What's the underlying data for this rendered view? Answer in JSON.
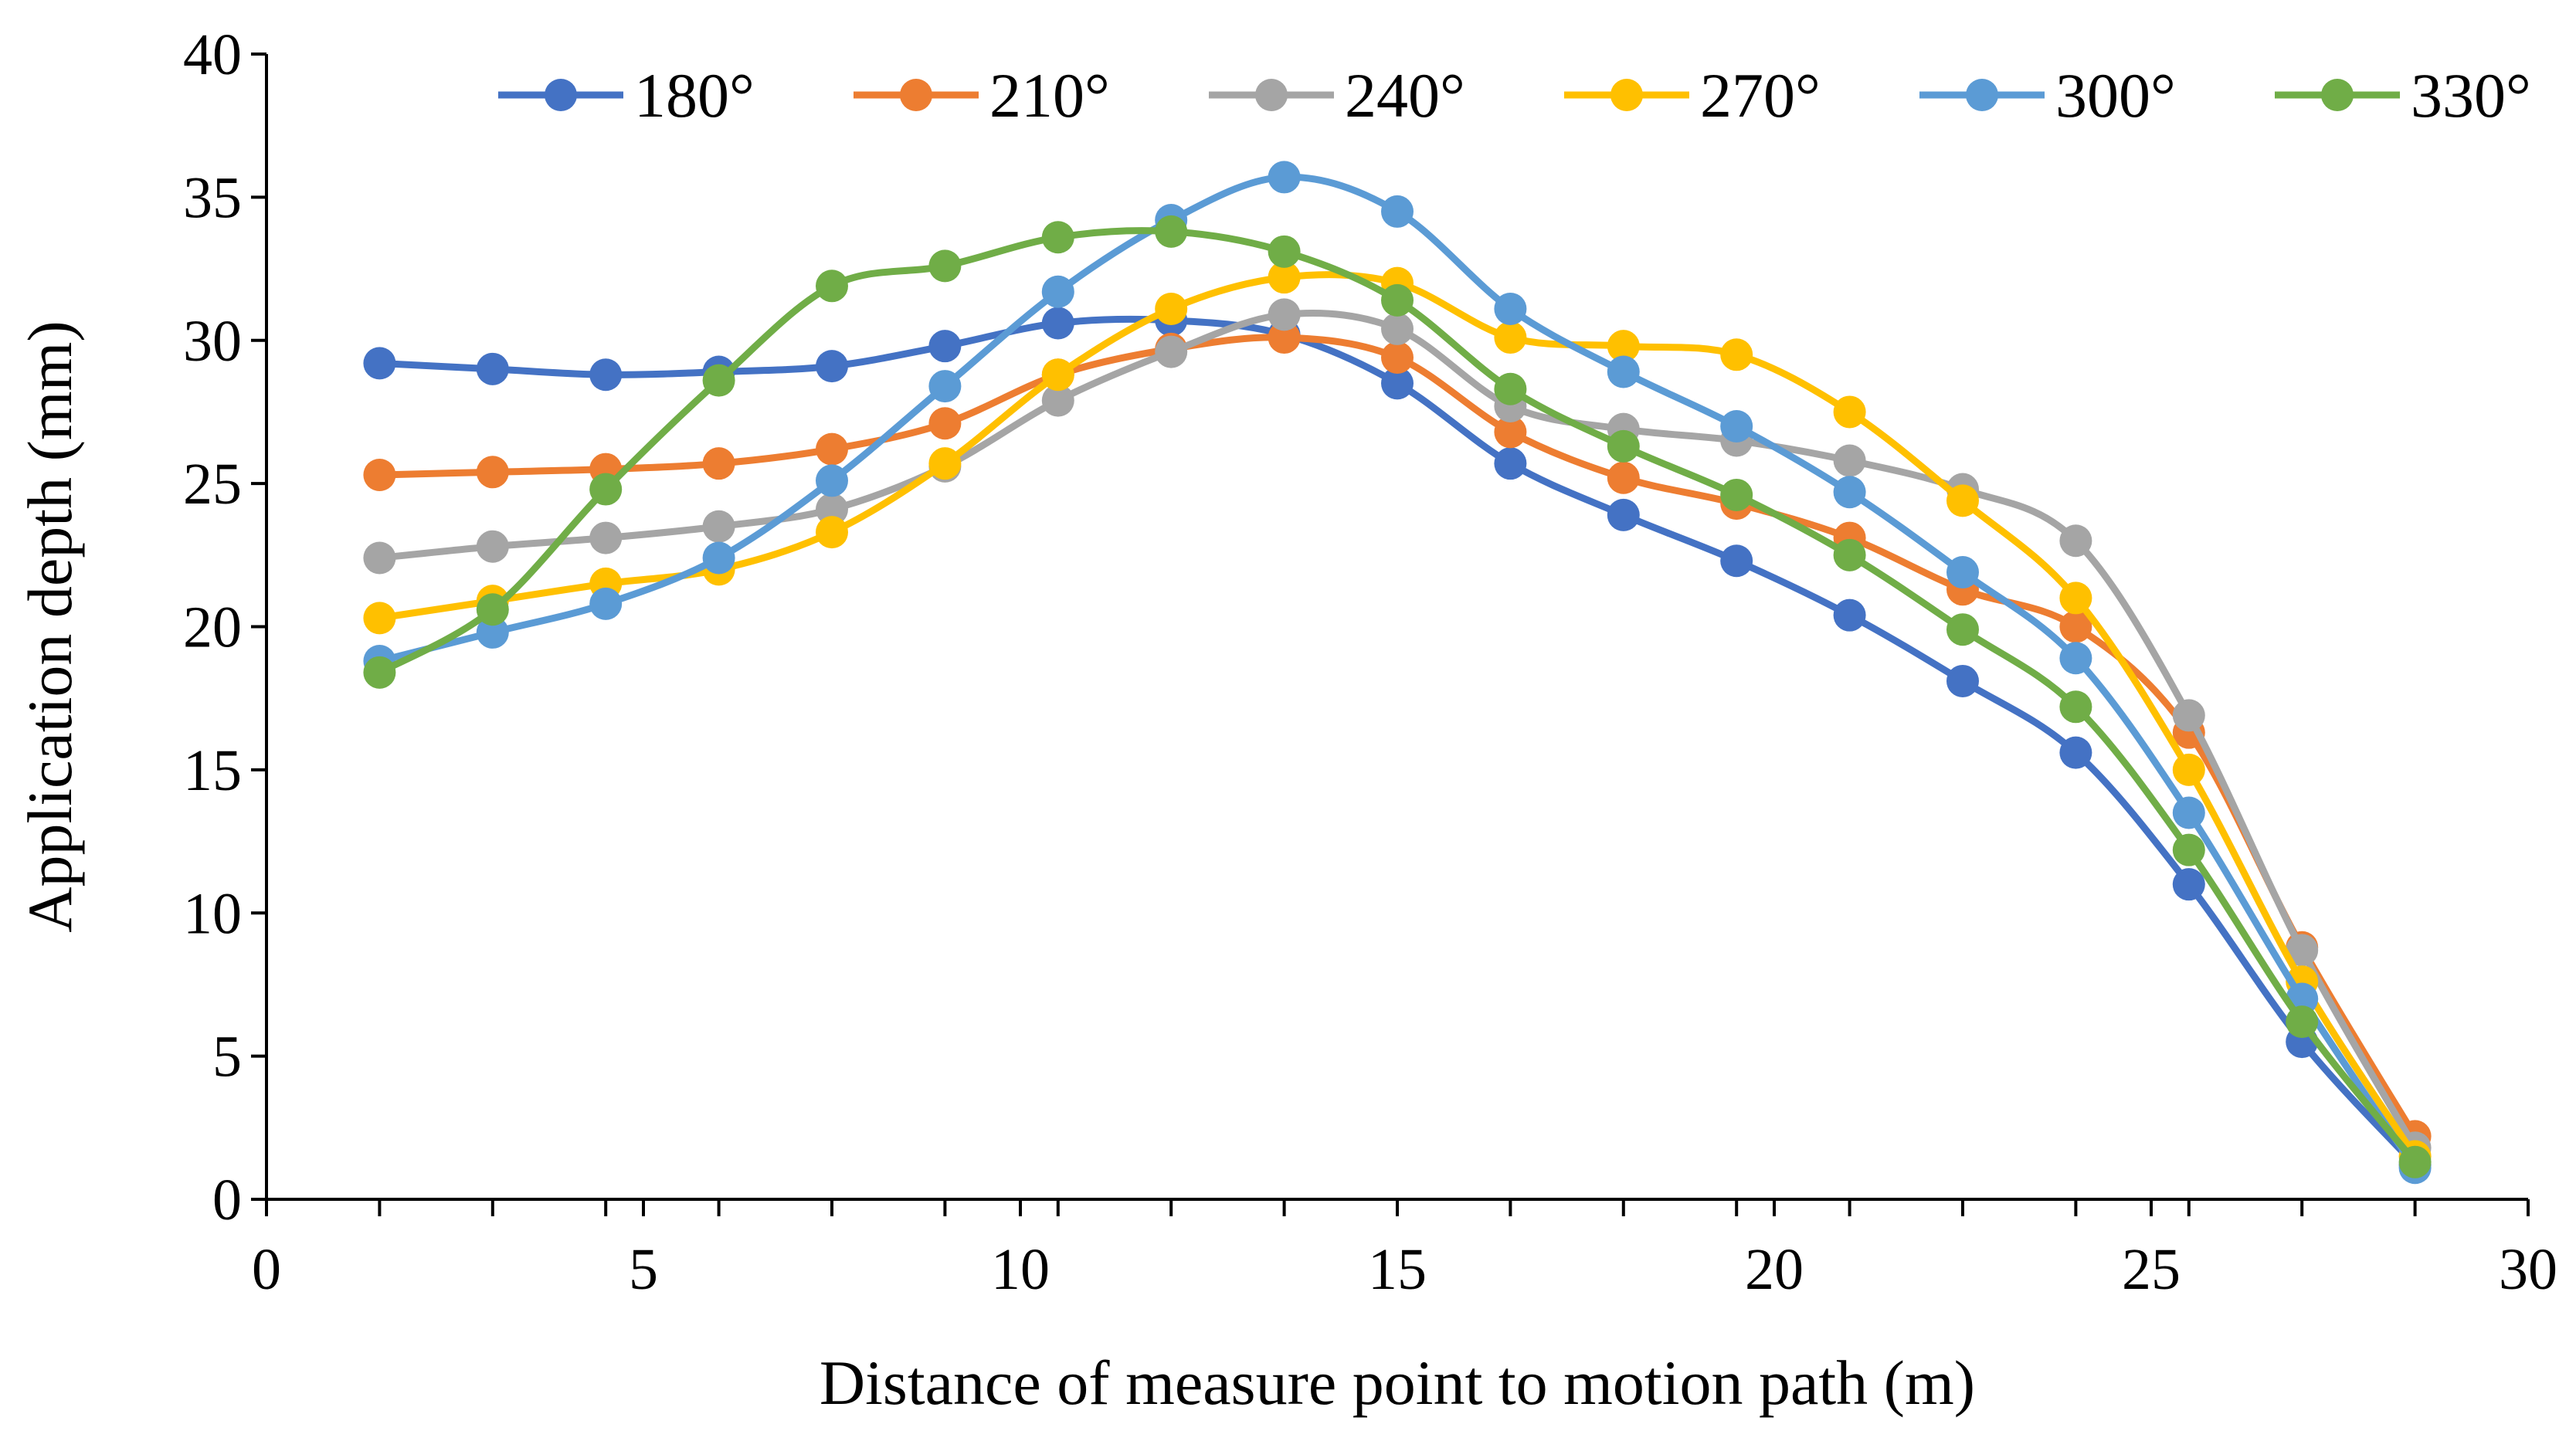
{
  "chart_data": {
    "type": "line",
    "title": "",
    "xlabel": "Distance of measure point to motion path (m)",
    "ylabel": "Application depth (mm)",
    "xlim": [
      0,
      30
    ],
    "ylim": [
      0,
      40
    ],
    "x_ticks": [
      "0",
      "5",
      "10",
      "15",
      "20",
      "25",
      "30"
    ],
    "y_ticks": [
      "0",
      "5",
      "10",
      "15",
      "20",
      "25",
      "30",
      "35",
      "40"
    ],
    "x_major_step": 5,
    "x_minor_step": 1.5,
    "grid": false,
    "legend_position": "top",
    "x": [
      1.5,
      3,
      4.5,
      6,
      7.5,
      9,
      10.5,
      12,
      13.5,
      15,
      16.5,
      18,
      19.5,
      21,
      22.5,
      24,
      25.5,
      27,
      28.5
    ],
    "series": [
      {
        "name": "180°",
        "color": "#4472C4",
        "values": [
          29.2,
          29.0,
          28.8,
          28.9,
          29.1,
          29.8,
          30.6,
          30.7,
          30.2,
          28.5,
          25.7,
          23.9,
          22.3,
          20.4,
          18.1,
          15.6,
          11.0,
          5.5,
          1.2
        ]
      },
      {
        "name": "210°",
        "color": "#ED7D31",
        "values": [
          25.3,
          25.4,
          25.5,
          25.7,
          26.2,
          27.1,
          28.8,
          29.7,
          30.1,
          29.4,
          26.8,
          25.2,
          24.3,
          23.1,
          21.3,
          20.0,
          16.3,
          8.8,
          2.2
        ]
      },
      {
        "name": "240°",
        "color": "#A5A5A5",
        "values": [
          22.4,
          22.8,
          23.1,
          23.5,
          24.1,
          25.6,
          27.9,
          29.6,
          30.9,
          30.4,
          27.7,
          26.9,
          26.5,
          25.8,
          24.8,
          23.0,
          16.9,
          8.7,
          1.8
        ]
      },
      {
        "name": "270°",
        "color": "#FFC000",
        "values": [
          20.3,
          20.9,
          21.5,
          22.0,
          23.3,
          25.7,
          28.8,
          31.1,
          32.2,
          32.0,
          30.1,
          29.8,
          29.5,
          27.5,
          24.4,
          21.0,
          15.0,
          7.6,
          1.5
        ]
      },
      {
        "name": "300°",
        "color": "#5B9BD5",
        "values": [
          18.8,
          19.8,
          20.8,
          22.4,
          25.1,
          28.4,
          31.7,
          34.2,
          35.7,
          34.5,
          31.1,
          28.9,
          27.0,
          24.7,
          21.9,
          18.9,
          13.5,
          7.0,
          1.1
        ]
      },
      {
        "name": "330°",
        "color": "#70AD47",
        "values": [
          18.4,
          20.6,
          24.8,
          28.6,
          31.9,
          32.6,
          33.6,
          33.8,
          33.1,
          31.4,
          28.3,
          26.3,
          24.6,
          22.5,
          19.9,
          17.2,
          12.2,
          6.2,
          1.3
        ]
      }
    ]
  }
}
